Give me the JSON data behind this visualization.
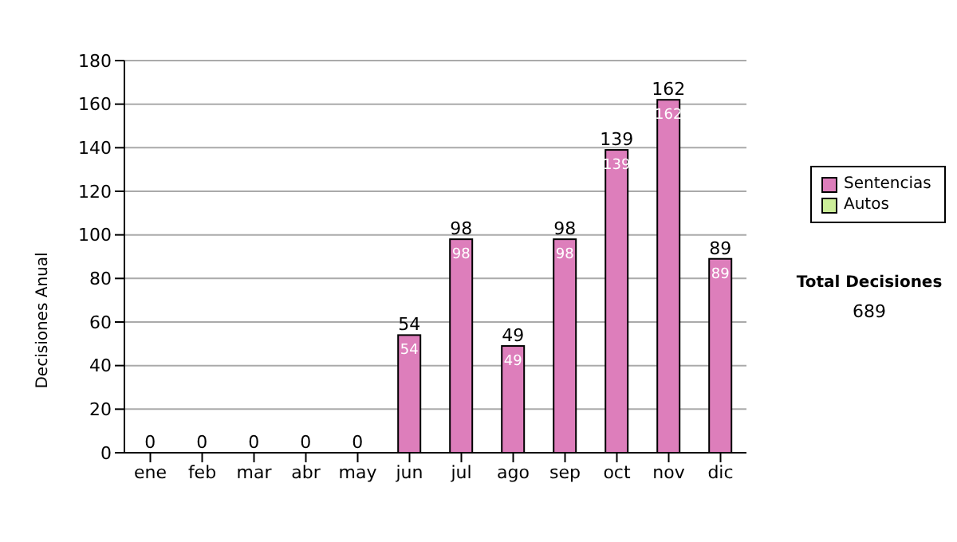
{
  "chart_data": {
    "type": "bar",
    "ylabel": "Decisiones Anual",
    "categories": [
      "ene",
      "feb",
      "mar",
      "abr",
      "may",
      "jun",
      "jul",
      "ago",
      "sep",
      "oct",
      "nov",
      "dic"
    ],
    "series": [
      {
        "name": "Sentencias",
        "color": "#dd7ebb",
        "values": [
          0,
          0,
          0,
          0,
          0,
          54,
          98,
          49,
          98,
          139,
          162,
          89
        ],
        "value_labels": [
          null,
          null,
          null,
          null,
          null,
          "54",
          "98",
          "49",
          "98",
          "139",
          "162",
          "89"
        ]
      },
      {
        "name": "Autos",
        "color": "#ccee99",
        "values": [
          0,
          0,
          0,
          0,
          0,
          0,
          0,
          0,
          0,
          0,
          0,
          0
        ]
      }
    ],
    "stacked": true,
    "totals": [
      "0",
      "0",
      "0",
      "0",
      "0",
      "54",
      "98",
      "49",
      "98",
      "139",
      "162",
      "89"
    ],
    "ylim": [
      0,
      180
    ],
    "yticks": [
      0,
      20,
      40,
      60,
      80,
      100,
      120,
      140,
      160,
      180
    ],
    "grid": "y",
    "legend": "right",
    "annotations": [
      "Total Decisiones",
      "689"
    ]
  }
}
